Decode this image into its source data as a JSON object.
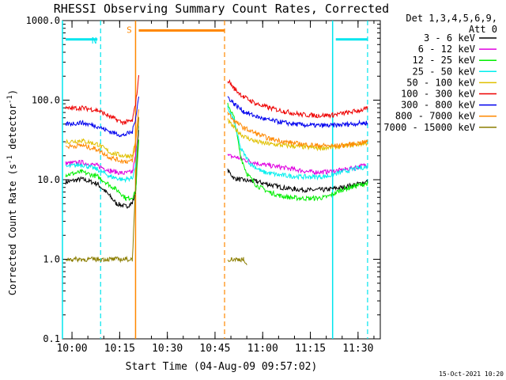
{
  "chart_data": {
    "type": "line",
    "title": "RHESSI Observing Summary Count Rates, Corrected",
    "xlabel": "Start Time (04-Aug-09 09:57:02)",
    "ylabel": "Corrected Count Rate (s",
    "ylabel_sup": "-1",
    "ylabel_suffix": " detector",
    "ylabel_close": ")",
    "y_scale": "log",
    "ylim": [
      0.1,
      1000.0
    ],
    "xlim": [
      "09:57",
      "11:37"
    ],
    "x_ticks": [
      "10:00",
      "10:15",
      "10:30",
      "10:45",
      "11:00",
      "11:15",
      "11:30"
    ],
    "y_ticks": [
      "0.1",
      "1.0",
      "10.0",
      "100.0",
      "1000.0"
    ],
    "grid": false,
    "legend_position": "top-right",
    "legend_header": [
      "Det 1,3,4,5,6,9,",
      "Att 0"
    ],
    "timestamp": "15-Oct-2021 10:20",
    "series": [
      {
        "name": "3 - 6 keV",
        "color": "#000000",
        "points": [
          [
            "09:58",
            9.3
          ],
          [
            "10:03",
            10.2
          ],
          [
            "10:08",
            8.9
          ],
          [
            "10:12",
            6.2
          ],
          [
            "10:14",
            5.0
          ],
          [
            "10:17",
            4.6
          ],
          [
            "10:19",
            5.1
          ],
          [
            "10:20",
            7.0
          ],
          [
            "10:21",
            45
          ],
          [
            "10:49",
            13
          ],
          [
            "10:51",
            10.5
          ],
          [
            "10:54",
            9.8
          ],
          [
            "10:58",
            9.5
          ],
          [
            "11:02",
            8.7
          ],
          [
            "11:06",
            8.0
          ],
          [
            "11:10",
            7.6
          ],
          [
            "11:15",
            7.4
          ],
          [
            "11:20",
            7.5
          ],
          [
            "11:25",
            8.0
          ],
          [
            "11:30",
            8.8
          ],
          [
            "11:33",
            9.5
          ]
        ]
      },
      {
        "name": "6 - 12 keV",
        "color": "#e000e0",
        "points": [
          [
            "09:58",
            16.0
          ],
          [
            "10:03",
            16.5
          ],
          [
            "10:08",
            15.0
          ],
          [
            "10:12",
            13.0
          ],
          [
            "10:16",
            12.0
          ],
          [
            "10:19",
            12.5
          ],
          [
            "10:20",
            20
          ],
          [
            "10:21",
            50
          ],
          [
            "10:49",
            20
          ],
          [
            "10:52",
            19
          ],
          [
            "10:56",
            17
          ],
          [
            "11:00",
            15.5
          ],
          [
            "11:05",
            14.5
          ],
          [
            "11:10",
            13.5
          ],
          [
            "11:15",
            12.5
          ],
          [
            "11:20",
            12.5
          ],
          [
            "11:25",
            13.2
          ],
          [
            "11:30",
            14.5
          ],
          [
            "11:33",
            15.5
          ]
        ]
      },
      {
        "name": "12 - 25 keV",
        "color": "#00ee00",
        "points": [
          [
            "09:58",
            11.5
          ],
          [
            "10:03",
            12.5
          ],
          [
            "10:08",
            11.0
          ],
          [
            "10:12",
            8.5
          ],
          [
            "10:15",
            7.0
          ],
          [
            "10:17",
            5.8
          ],
          [
            "10:19",
            6.0
          ],
          [
            "10:20",
            7.0
          ],
          [
            "10:21",
            30
          ],
          [
            "10:49",
            90
          ],
          [
            "10:51",
            60
          ],
          [
            "10:53",
            20
          ],
          [
            "10:55",
            12
          ],
          [
            "10:58",
            8.5
          ],
          [
            "11:02",
            7.0
          ],
          [
            "11:06",
            6.2
          ],
          [
            "11:10",
            5.9
          ],
          [
            "11:15",
            5.8
          ],
          [
            "11:20",
            6.0
          ],
          [
            "11:25",
            7.5
          ],
          [
            "11:30",
            8.5
          ],
          [
            "11:33",
            9.0
          ]
        ]
      },
      {
        "name": "25 - 50 keV",
        "color": "#00eeee",
        "points": [
          [
            "09:58",
            14.5
          ],
          [
            "10:03",
            15.5
          ],
          [
            "10:08",
            13.5
          ],
          [
            "10:12",
            11.0
          ],
          [
            "10:16",
            10.0
          ],
          [
            "10:19",
            10.5
          ],
          [
            "10:20",
            15
          ],
          [
            "10:21",
            45
          ],
          [
            "10:49",
            80
          ],
          [
            "10:51",
            55
          ],
          [
            "10:53",
            25
          ],
          [
            "10:56",
            16
          ],
          [
            "11:00",
            12.5
          ],
          [
            "11:05",
            11.5
          ],
          [
            "11:10",
            11.0
          ],
          [
            "11:15",
            10.8
          ],
          [
            "11:20",
            11.0
          ],
          [
            "11:25",
            12.5
          ],
          [
            "11:30",
            14.0
          ],
          [
            "11:33",
            14.5
          ]
        ]
      },
      {
        "name": "50 - 100 keV",
        "color": "#e0c000",
        "points": [
          [
            "09:58",
            30
          ],
          [
            "10:03",
            31
          ],
          [
            "10:08",
            28
          ],
          [
            "10:12",
            22
          ],
          [
            "10:16",
            20
          ],
          [
            "10:19",
            20
          ],
          [
            "10:20",
            30
          ],
          [
            "10:21",
            60
          ],
          [
            "10:49",
            55
          ],
          [
            "10:51",
            45
          ],
          [
            "10:54",
            35
          ],
          [
            "10:58",
            30
          ],
          [
            "11:02",
            28
          ],
          [
            "11:07",
            27
          ],
          [
            "11:12",
            26
          ],
          [
            "11:17",
            25
          ],
          [
            "11:22",
            25.5
          ],
          [
            "11:27",
            27
          ],
          [
            "11:33",
            29
          ]
        ]
      },
      {
        "name": "100 - 300 keV",
        "color": "#ee0000",
        "points": [
          [
            "09:58",
            78
          ],
          [
            "10:03",
            80
          ],
          [
            "10:08",
            75
          ],
          [
            "10:12",
            62
          ],
          [
            "10:16",
            52
          ],
          [
            "10:19",
            55
          ],
          [
            "10:20",
            90
          ],
          [
            "10:21",
            195
          ],
          [
            "10:49",
            180
          ],
          [
            "10:51",
            140
          ],
          [
            "10:54",
            110
          ],
          [
            "10:58",
            90
          ],
          [
            "11:02",
            80
          ],
          [
            "11:07",
            72
          ],
          [
            "11:12",
            66
          ],
          [
            "11:17",
            64
          ],
          [
            "11:22",
            65
          ],
          [
            "11:27",
            70
          ],
          [
            "11:33",
            78
          ]
        ]
      },
      {
        "name": "300 - 800 keV",
        "color": "#0000ee",
        "points": [
          [
            "09:58",
            50
          ],
          [
            "10:03",
            52
          ],
          [
            "10:08",
            47
          ],
          [
            "10:12",
            40
          ],
          [
            "10:16",
            36
          ],
          [
            "10:19",
            40
          ],
          [
            "10:20",
            60
          ],
          [
            "10:21",
            110
          ],
          [
            "10:49",
            110
          ],
          [
            "10:51",
            90
          ],
          [
            "10:54",
            72
          ],
          [
            "10:58",
            62
          ],
          [
            "11:02",
            56
          ],
          [
            "11:07",
            52
          ],
          [
            "11:12",
            49
          ],
          [
            "11:17",
            48
          ],
          [
            "11:22",
            48
          ],
          [
            "11:27",
            50
          ],
          [
            "11:33",
            52
          ]
        ]
      },
      {
        "name": "800 - 7000 keV",
        "color": "#ff8800",
        "points": [
          [
            "09:58",
            26
          ],
          [
            "10:03",
            27
          ],
          [
            "10:08",
            24
          ],
          [
            "10:12",
            19
          ],
          [
            "10:16",
            17
          ],
          [
            "10:19",
            17
          ],
          [
            "10:20",
            30
          ],
          [
            "10:21",
            80
          ],
          [
            "10:49",
            70
          ],
          [
            "10:51",
            55
          ],
          [
            "10:54",
            45
          ],
          [
            "10:58",
            38
          ],
          [
            "11:02",
            33
          ],
          [
            "11:07",
            30
          ],
          [
            "11:12",
            28
          ],
          [
            "11:17",
            27
          ],
          [
            "11:22",
            26.5
          ],
          [
            "11:27",
            27.5
          ],
          [
            "11:33",
            30
          ]
        ]
      },
      {
        "name": "7000 - 15000 keV",
        "color": "#8b7d00",
        "points": [
          [
            "09:58",
            1.0
          ],
          [
            "10:00",
            1.0
          ],
          [
            "10:04",
            1.0
          ],
          [
            "10:08",
            1.0
          ],
          [
            "10:11",
            1.0
          ],
          [
            "10:12",
            1.0
          ],
          [
            "10:19",
            1.0
          ],
          [
            "10:20",
            8
          ],
          [
            "10:21",
            60
          ],
          [
            "10:49",
            1.0
          ],
          [
            "10:50",
            1.0
          ],
          [
            "10:52",
            1.0
          ],
          [
            "10:54",
            1.0
          ],
          [
            "10:55",
            0.8
          ]
        ]
      }
    ],
    "markers": [
      {
        "label": "N",
        "color": "#00e5ee",
        "dashed_at": [
          "10:09",
          "11:33"
        ],
        "solid_at": [
          "09:57",
          "11:22"
        ],
        "bars": [
          [
            "09:58",
            "10:08"
          ],
          [
            "11:23",
            "11:33"
          ]
        ],
        "bar_value": 580,
        "label_at": "10:07"
      },
      {
        "label": "S",
        "color": "#ff8800",
        "solid_at": [
          "10:20"
        ],
        "dashed_at": [
          "10:48"
        ],
        "bars": [
          [
            "10:21",
            "10:48"
          ]
        ],
        "bar_value": 750,
        "label_at": "10:18"
      }
    ]
  }
}
